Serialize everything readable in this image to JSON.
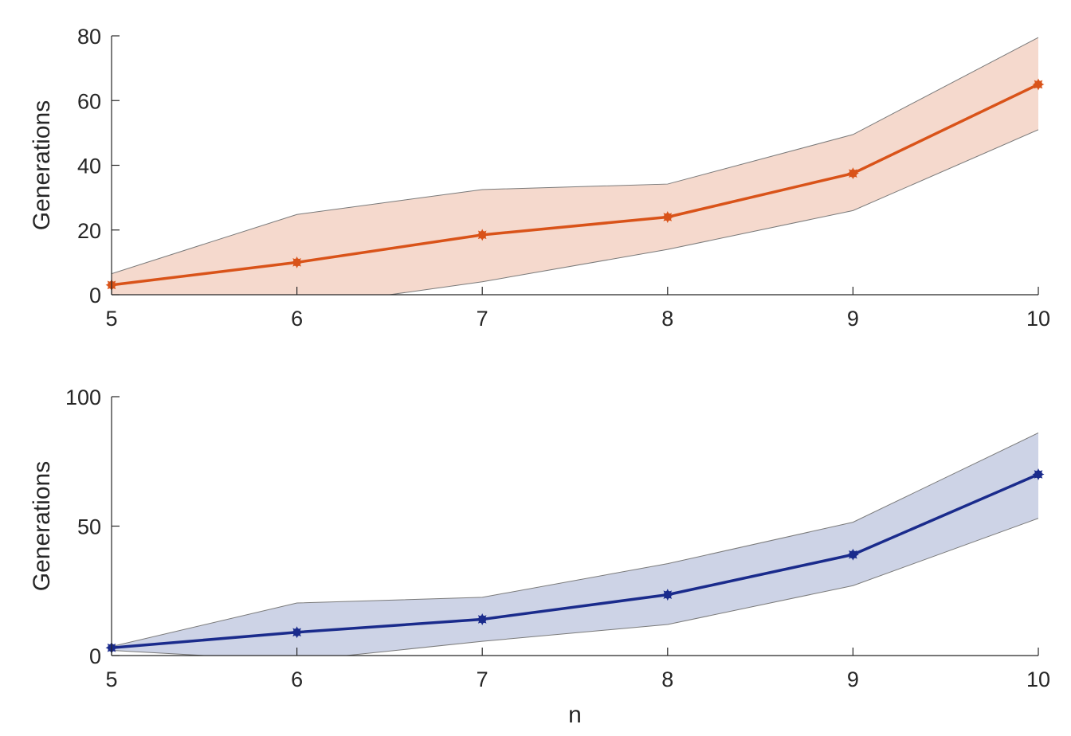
{
  "chart_data": [
    {
      "type": "line",
      "x": [
        5,
        6,
        7,
        8,
        9,
        10
      ],
      "series": [
        {
          "values": [
            3,
            10,
            18.5,
            24,
            37.5,
            65
          ],
          "upper": [
            6.5,
            24.8,
            32.5,
            34.2,
            49.5,
            79.5
          ],
          "lower": [
            -5,
            -4,
            4,
            14,
            26,
            51
          ],
          "color": "#d95319",
          "band_color": "#f5d9cd"
        }
      ],
      "xlabel": "",
      "ylabel": "Generations",
      "xlim": [
        5,
        10
      ],
      "ylim": [
        0,
        80
      ],
      "xticks": [
        "5",
        "6",
        "7",
        "8",
        "9",
        "10"
      ],
      "yticks": [
        "0",
        "20",
        "40",
        "60",
        "80"
      ],
      "ytick_values": [
        0,
        20,
        40,
        60,
        80
      ],
      "grid": false,
      "marker": "star"
    },
    {
      "type": "line",
      "x": [
        5,
        6,
        7,
        8,
        9,
        10
      ],
      "series": [
        {
          "values": [
            3,
            9,
            14,
            23.5,
            39,
            70
          ],
          "upper": [
            3.5,
            20.3,
            22.5,
            35.5,
            51.5,
            86
          ],
          "lower": [
            2,
            -2,
            5.5,
            12,
            27,
            53
          ],
          "color": "#1a2b8c",
          "band_color": "#cdd3e6"
        }
      ],
      "xlabel": "n",
      "ylabel": "Generations",
      "xlim": [
        5,
        10
      ],
      "ylim": [
        0,
        100
      ],
      "xticks": [
        "5",
        "6",
        "7",
        "8",
        "9",
        "10"
      ],
      "yticks": [
        "0",
        "50",
        "100"
      ],
      "ytick_values": [
        0,
        50,
        100
      ],
      "grid": false,
      "marker": "star"
    }
  ]
}
